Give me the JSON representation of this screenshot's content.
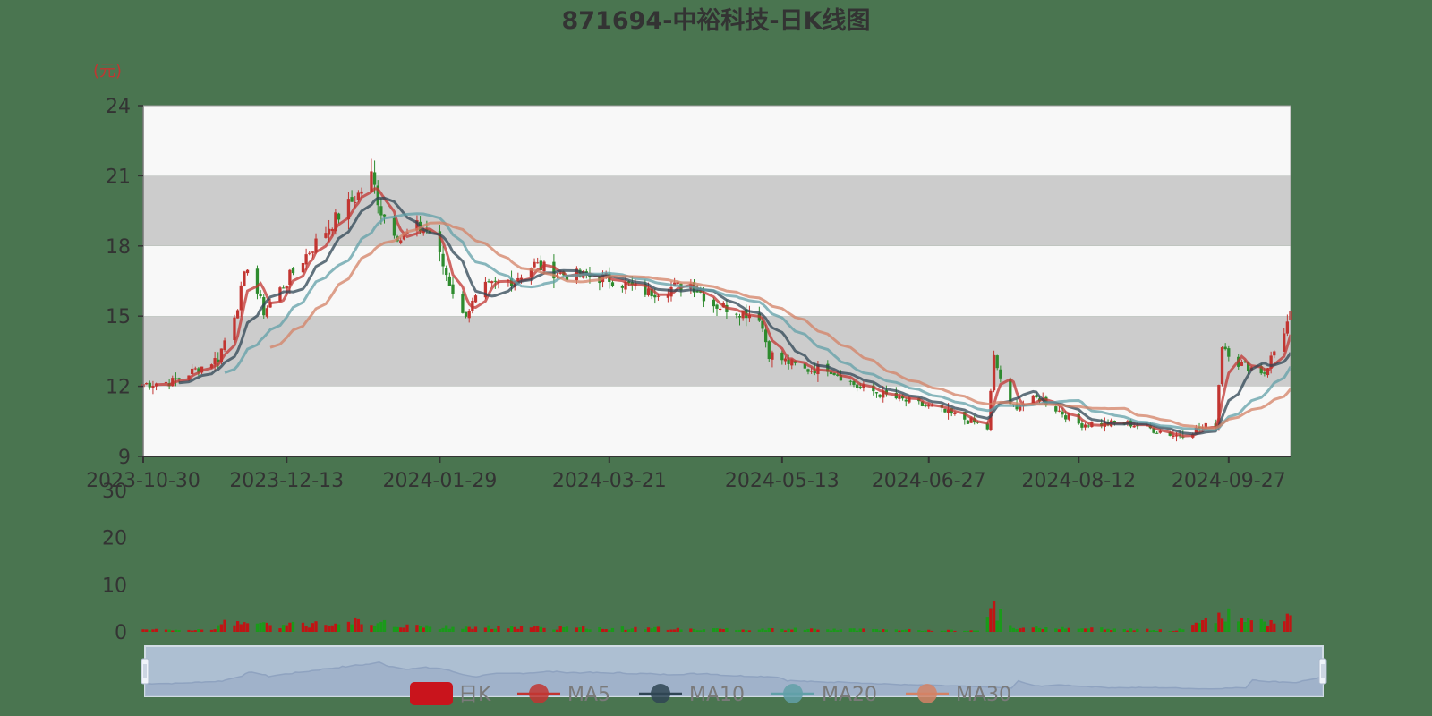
{
  "chart_data": {
    "type": "candlestick",
    "title": "871694-中裕科技-日K线图",
    "unit_label": "(元)",
    "price_axis": {
      "ylim": [
        9,
        24
      ],
      "ticks": [
        "24",
        "21",
        "18",
        "15",
        "12",
        "9"
      ]
    },
    "volume_axis": {
      "ylim": [
        0,
        30
      ],
      "ticks": [
        "30",
        "20",
        "10",
        "0"
      ]
    },
    "x_tick_labels": [
      "2023-10-30",
      "2023-12-13",
      "2024-01-29",
      "2024-03-21",
      "2024-05-13",
      "2024-06-27",
      "2024-08-12",
      "2024-09-27"
    ],
    "start_date": "2023-10-30",
    "end_date": "2024-10-16",
    "price_keyframes": [
      [
        "2023-10-30",
        12.1
      ],
      [
        "2023-11-08",
        12.2
      ],
      [
        "2023-11-22",
        13.2
      ],
      [
        "2023-11-28",
        15.5
      ],
      [
        "2023-12-01",
        17.2
      ],
      [
        "2023-12-06",
        15.2
      ],
      [
        "2023-12-13",
        16.5
      ],
      [
        "2023-12-20",
        17.8
      ],
      [
        "2023-12-27",
        19.0
      ],
      [
        "2024-01-04",
        20.2
      ],
      [
        "2024-01-08",
        21.0
      ],
      [
        "2024-01-11",
        19.5
      ],
      [
        "2024-01-17",
        18.3
      ],
      [
        "2024-01-22",
        18.8
      ],
      [
        "2024-01-26",
        18.6
      ],
      [
        "2024-01-31",
        16.8
      ],
      [
        "2024-02-05",
        15.0
      ],
      [
        "2024-02-12",
        16.2
      ],
      [
        "2024-02-21",
        16.6
      ],
      [
        "2024-02-27",
        17.2
      ],
      [
        "2024-03-06",
        16.8
      ],
      [
        "2024-03-21",
        16.6
      ],
      [
        "2024-04-02",
        16.0
      ],
      [
        "2024-04-15",
        16.4
      ],
      [
        "2024-04-22",
        15.5
      ],
      [
        "2024-05-06",
        15.0
      ],
      [
        "2024-05-09",
        13.4
      ],
      [
        "2024-05-20",
        12.7
      ],
      [
        "2024-05-27",
        12.8
      ],
      [
        "2024-06-05",
        12.0
      ],
      [
        "2024-06-14",
        11.6
      ],
      [
        "2024-06-27",
        11.1
      ],
      [
        "2024-07-08",
        10.6
      ],
      [
        "2024-07-15",
        10.2
      ],
      [
        "2024-07-17",
        13.2
      ],
      [
        "2024-07-22",
        11.1
      ],
      [
        "2024-07-31",
        11.5
      ],
      [
        "2024-08-12",
        10.4
      ],
      [
        "2024-08-28",
        10.4
      ],
      [
        "2024-09-11",
        9.9
      ],
      [
        "2024-09-23",
        10.4
      ],
      [
        "2024-09-25",
        13.8
      ],
      [
        "2024-09-30",
        13.0
      ],
      [
        "2024-10-08",
        12.6
      ],
      [
        "2024-10-16",
        15.0
      ]
    ],
    "volume_keyframes": [
      [
        "2023-10-30",
        0.4
      ],
      [
        "2023-11-20",
        0.5
      ],
      [
        "2023-11-28",
        3.0
      ],
      [
        "2023-12-04",
        1.5
      ],
      [
        "2023-12-20",
        1.5
      ],
      [
        "2023-12-29",
        3.0
      ],
      [
        "2024-01-08",
        1.8
      ],
      [
        "2024-01-31",
        1.0
      ],
      [
        "2024-03-21",
        0.8
      ],
      [
        "2024-04-22",
        0.6
      ],
      [
        "2024-05-13",
        0.6
      ],
      [
        "2024-07-12",
        0.3
      ],
      [
        "2024-07-17",
        5.5
      ],
      [
        "2024-07-22",
        1.0
      ],
      [
        "2024-09-11",
        0.3
      ],
      [
        "2024-09-26",
        3.5
      ],
      [
        "2024-10-08",
        2.0
      ],
      [
        "2024-10-16",
        3.2
      ]
    ],
    "moving_averages": [
      {
        "name": "MA5",
        "window": 5,
        "color": "#c23531"
      },
      {
        "name": "MA10",
        "window": 10,
        "color": "#2f4554"
      },
      {
        "name": "MA20",
        "window": 20,
        "color": "#61a0a8"
      },
      {
        "name": "MA30",
        "window": 30,
        "color": "#d48265"
      }
    ],
    "legend": {
      "placement": "bottom",
      "items": [
        "日K",
        "MA5",
        "MA10",
        "MA20",
        "MA30"
      ]
    },
    "colors": {
      "up": "#c23531",
      "down": "#2e8b2e",
      "volume_up": "#c01414",
      "volume_down": "#1a9a1a",
      "band_light": "#f8f8f8",
      "band_dark": "#cccccc",
      "axis": "#333333",
      "slider_fill": "#b3c3da",
      "slider_line": "#8fa3c0"
    }
  }
}
